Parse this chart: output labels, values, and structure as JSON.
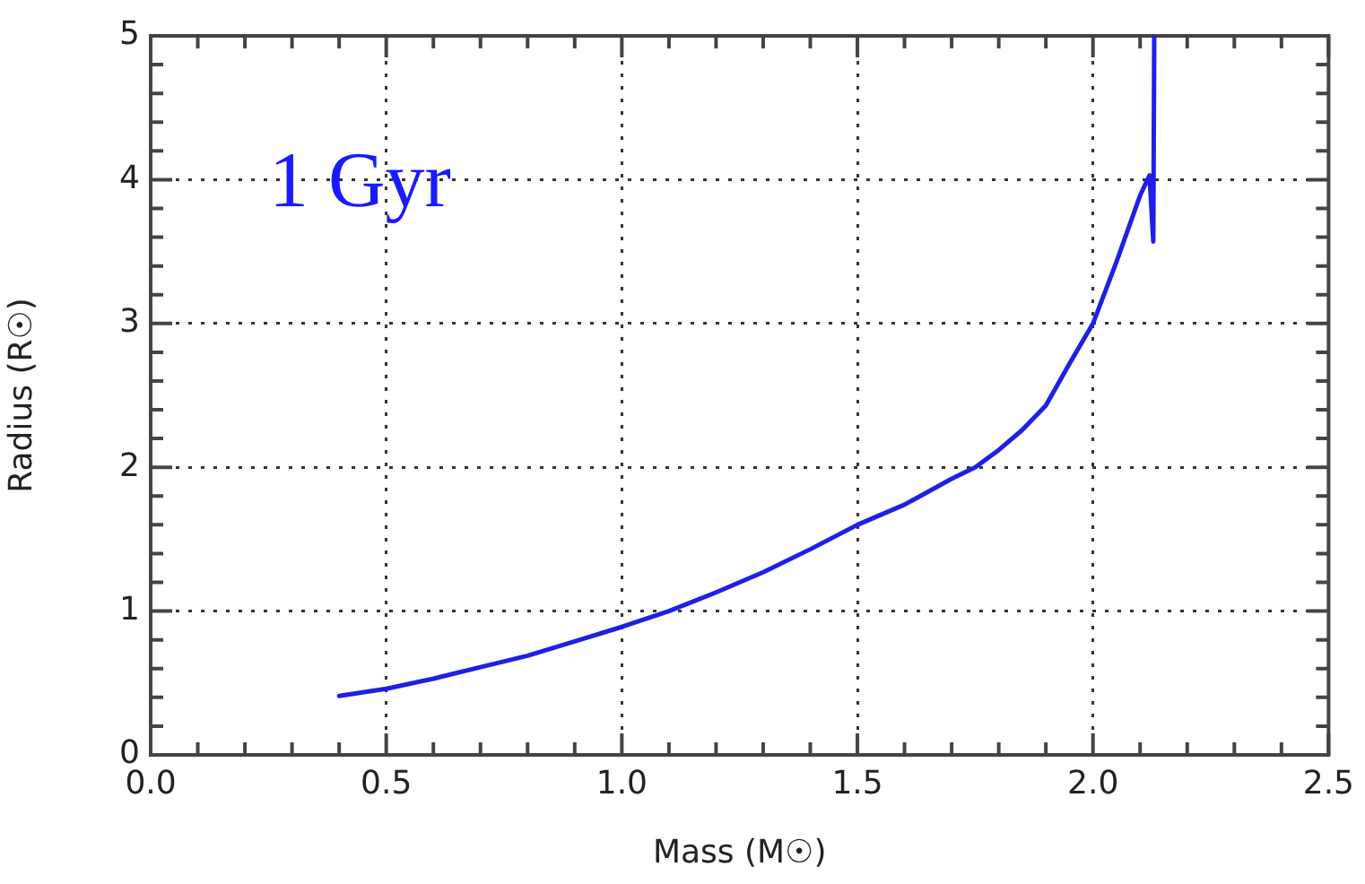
{
  "chart_data": {
    "type": "line",
    "xlabel": "Mass (M☉)",
    "ylabel": "Radius (R☉)",
    "annotations": [
      "1 Gyr"
    ],
    "series": [
      {
        "color": "#1f1fe6",
        "x": [
          0.4,
          0.5,
          0.6,
          0.7,
          0.8,
          0.9,
          1.0,
          1.1,
          1.2,
          1.3,
          1.4,
          1.5,
          1.6,
          1.7,
          1.75,
          1.8,
          1.85,
          1.9,
          1.95,
          2.0,
          2.05,
          2.1,
          2.12,
          2.128,
          2.13
        ],
        "values": [
          0.41,
          0.46,
          0.53,
          0.61,
          0.69,
          0.79,
          0.89,
          1.0,
          1.13,
          1.27,
          1.43,
          1.6,
          1.74,
          1.92,
          2.0,
          2.12,
          2.26,
          2.43,
          2.72,
          3.0,
          3.43,
          3.89,
          4.03,
          3.57,
          5.0
        ]
      }
    ],
    "xlim": [
      0,
      2.5
    ],
    "xticks": [
      {
        "value": 0,
        "label": "0.0"
      },
      0.5,
      {
        "value": 1,
        "label": "1.0"
      },
      1.5,
      {
        "value": 2,
        "label": "2.0"
      },
      2.5
    ],
    "ylim": [
      0,
      5
    ],
    "yticks": [
      0,
      1,
      2,
      3,
      4,
      5
    ],
    "grid": true,
    "legend": false,
    "marker": "none",
    "line_style": "solid"
  }
}
